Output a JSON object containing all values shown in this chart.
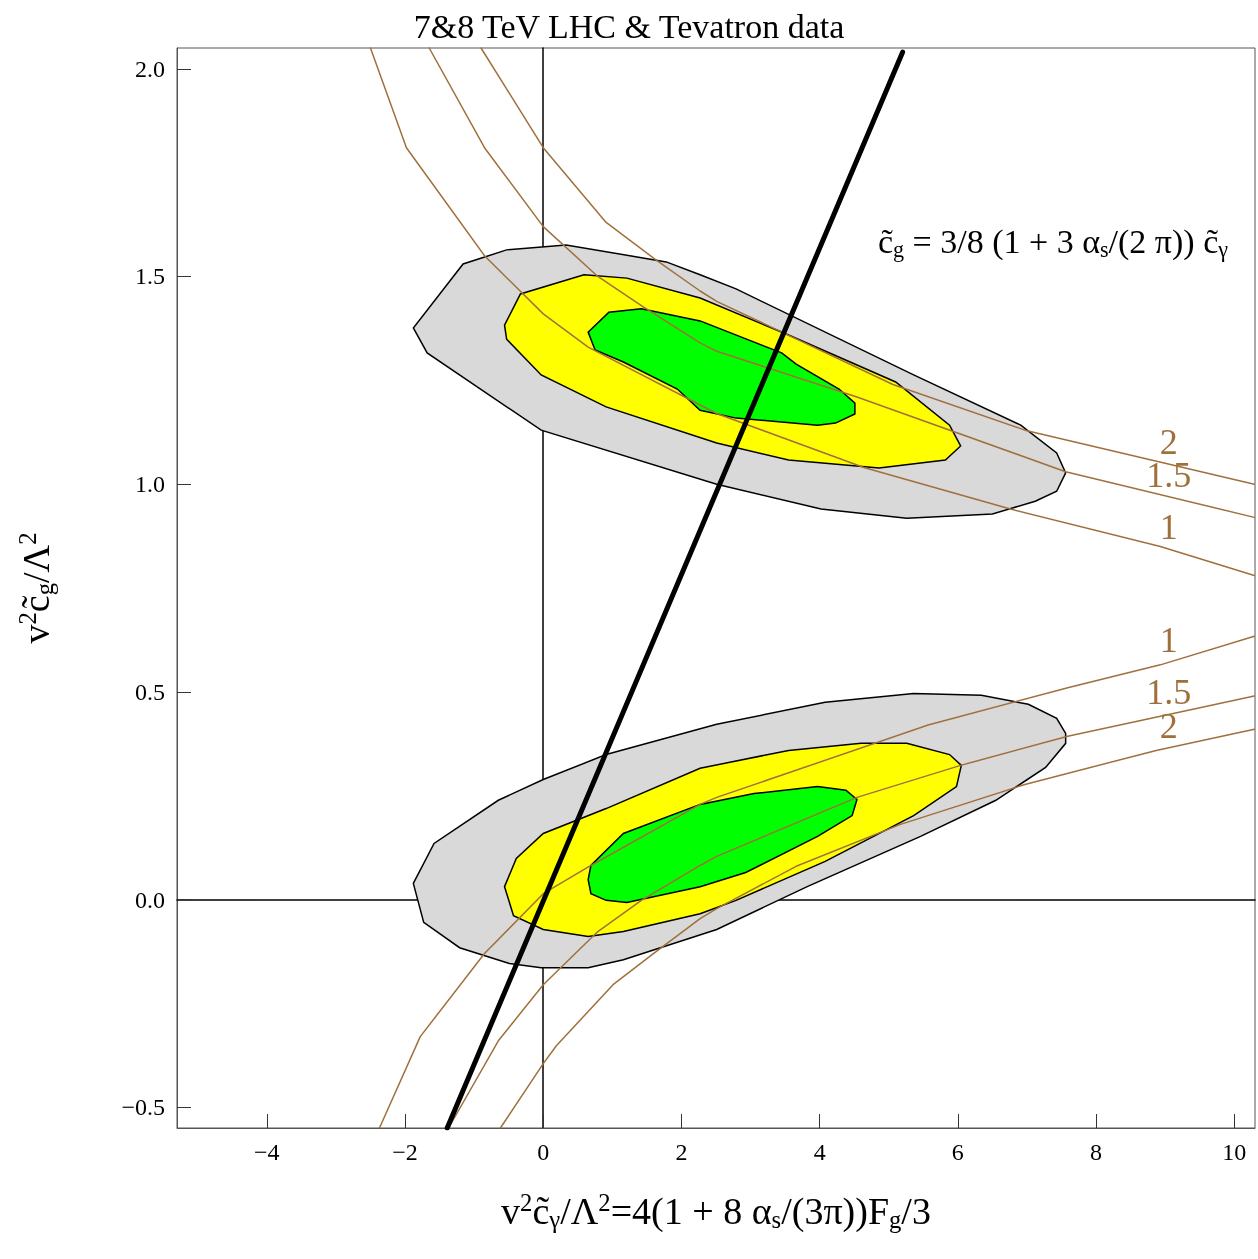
{
  "chart_data": {
    "type": "line",
    "title": "7&8 TeV LHC & Tevatron data",
    "xlabel": "v$^{2}$c̃$_{γ}$/Λ$^{2}$=4(1 + 8 α$_{s}$/(3π))F$_{g}$/3",
    "ylabel": "v$^{2}$c̃$_{g}$/Λ$^{2}$",
    "annotations": [
      "c̃$_{g}$ = 3/8 (1 + 3 α$_{s}$/(2 π)) c̃$_{γ}$"
    ],
    "xlim": [
      -5.3,
      10.3
    ],
    "ylim": [
      -0.55,
      2.05
    ],
    "xticks": [
      {
        "value": -4,
        "label": "−4"
      },
      {
        "value": -2,
        "label": "−2"
      },
      0,
      2,
      4,
      6,
      8,
      10
    ],
    "yticks": [
      {
        "value": -0.5,
        "label": "−0.5"
      },
      {
        "value": 0,
        "label": "0.0"
      },
      0.5,
      {
        "value": 1,
        "label": "1.0"
      },
      1.5,
      {
        "value": 2,
        "label": "2.0"
      }
    ],
    "marker": "none",
    "line_style": "solid",
    "series": [
      {
        "type": "area",
        "color": "#d9d9d9",
        "x": [
          -1.88,
          -1.68,
          -0.03,
          2.51,
          4.02,
          5.26,
          6.5,
          7.12,
          7.43,
          7.56,
          7.43,
          6.91,
          5.36,
          2.79,
          2.27,
          1.78,
          0.33,
          -0.53,
          -1.16,
          null,
          -1.88,
          -1.73,
          -1.21,
          -0.49,
          -0.03,
          0.65,
          1.16,
          2.51,
          3.82,
          5.46,
          6.55,
          7.27,
          7.56,
          7.56,
          7.43,
          7.02,
          6.34,
          5.36,
          4.08,
          2.51,
          0.91,
          0,
          -0.65,
          -1.58
        ],
        "values": [
          1.376,
          1.316,
          1.13,
          1.0,
          0.94,
          0.918,
          0.928,
          0.959,
          0.983,
          1.027,
          1.075,
          1.142,
          1.263,
          1.47,
          1.504,
          1.535,
          1.576,
          1.564,
          1.53,
          null,
          0.039,
          -0.055,
          -0.116,
          -0.154,
          -0.164,
          -0.164,
          -0.145,
          -0.072,
          0.031,
          0.152,
          0.239,
          0.318,
          0.376,
          0.4,
          0.436,
          0.47,
          0.492,
          0.496,
          0.475,
          0.422,
          0.349,
          0.289,
          0.239,
          0.135
        ]
      },
      {
        "type": "area",
        "color": "#ffff00",
        "x": [
          -0.56,
          -0.53,
          -0.03,
          0.91,
          2.51,
          3.55,
          4.86,
          5.82,
          6.04,
          5.88,
          5.1,
          3.55,
          2.27,
          1.21,
          0.59,
          -0.33,
          null,
          -0.56,
          -0.43,
          0,
          0.65,
          1.16,
          2.27,
          2.79,
          4.08,
          5.36,
          5.98,
          6.05,
          5.88,
          5.26,
          4.6,
          3.55,
          2.27,
          0.91,
          0,
          -0.39
        ],
        "values": [
          1.383,
          1.349,
          1.263,
          1.186,
          1.099,
          1.058,
          1.039,
          1.058,
          1.092,
          1.142,
          1.246,
          1.359,
          1.448,
          1.496,
          1.504,
          1.458,
          null,
          0.031,
          -0.039,
          -0.072,
          -0.089,
          -0.077,
          -0.034,
          -0.002,
          0.092,
          0.202,
          0.272,
          0.323,
          0.349,
          0.376,
          0.376,
          0.359,
          0.316,
          0.219,
          0.159,
          0.099
        ]
      },
      {
        "type": "area",
        "color": "#00ff00",
        "x": [
          0.65,
          0.75,
          1.16,
          1.94,
          2.27,
          2.79,
          3.97,
          4.23,
          4.51,
          4.51,
          4.28,
          3.66,
          3.45,
          2.27,
          1.42,
          0.95,
          null,
          0.65,
          0.69,
          0.91,
          1.21,
          2.27,
          2.93,
          3.97,
          4.47,
          4.54,
          4.38,
          3.97,
          3.05,
          2.27,
          1.16,
          0.69
        ],
        "values": [
          1.366,
          1.323,
          1.294,
          1.229,
          1.178,
          1.159,
          1.142,
          1.147,
          1.169,
          1.195,
          1.229,
          1.289,
          1.316,
          1.393,
          1.422,
          1.414,
          null,
          0.048,
          0.014,
          -0.002,
          -0.007,
          0.031,
          0.065,
          0.152,
          0.202,
          0.241,
          0.263,
          0.272,
          0.255,
          0.229,
          0.159,
          0.082
        ]
      },
      {
        "name": "1",
        "color": "#a0703c",
        "x": [
          -2.5,
          -1.98,
          -0.85,
          0,
          0.65,
          2.51,
          4.64,
          6.76,
          8.93,
          10.29
        ],
        "values": [
          2.05,
          1.81,
          1.55,
          1.41,
          1.33,
          1.17,
          1.04,
          0.94,
          0.85,
          0.78
        ]
      },
      {
        "name": "1.5",
        "color": "#a0703c",
        "x": [
          -1.65,
          -0.85,
          0,
          0.79,
          1.42,
          2.27,
          2.51,
          4.54,
          7.56,
          10.29
        ],
        "values": [
          2.05,
          1.81,
          1.62,
          1.5,
          1.43,
          1.34,
          1.32,
          1.21,
          1.03,
          0.92
        ]
      },
      {
        "name": "2",
        "color": "#a0703c",
        "x": [
          -0.9,
          0,
          0.91,
          1.63,
          2.27,
          2.51,
          5.06,
          6.97,
          10.29
        ],
        "values": [
          2.05,
          1.81,
          1.63,
          1.54,
          1.465,
          1.44,
          1.24,
          1.13,
          1.0
        ]
      },
      {
        "name": "1",
        "color": "#a0703c",
        "x": [
          -2.37,
          -1.78,
          -0.85,
          0,
          0.69,
          2.27,
          2.51,
          5.57,
          7.59,
          8.93,
          10.29
        ],
        "values": [
          -0.55,
          -0.33,
          -0.13,
          0.014,
          0.082,
          0.229,
          0.246,
          0.42,
          0.51,
          0.565,
          0.634
        ]
      },
      {
        "name": "1.5",
        "color": "#a0703c",
        "x": [
          -1.37,
          -0.65,
          0,
          0.79,
          1.42,
          2.27,
          2.51,
          4.54,
          6.04,
          7.59,
          10.29
        ],
        "values": [
          -0.55,
          -0.34,
          -0.205,
          -0.077,
          -0.002,
          0.082,
          0.104,
          0.246,
          0.323,
          0.393,
          0.49
        ]
      },
      {
        "name": "2",
        "color": "#a0703c",
        "x": [
          -0.62,
          0,
          0.19,
          1.01,
          1.58,
          2.27,
          2.51,
          3.66,
          5.17,
          6.97,
          8.87,
          10.29
        ],
        "values": [
          -0.55,
          -0.395,
          -0.352,
          -0.205,
          -0.132,
          -0.046,
          -0.022,
          0.08,
          0.181,
          0.277,
          0.359,
          0.41
        ]
      },
      {
        "color": "#000000",
        "x": [
          -1.39,
          5.2
        ],
        "values": [
          -0.55,
          2.04
        ]
      }
    ]
  }
}
